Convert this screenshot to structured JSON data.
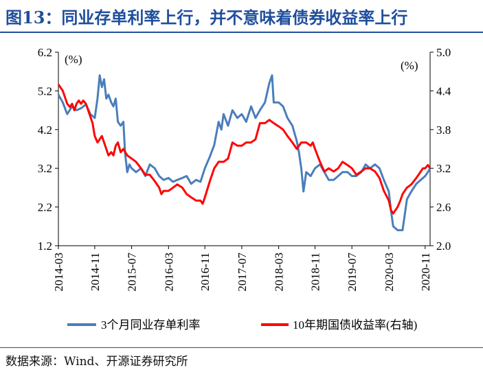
{
  "header": {
    "title": "图13：同业存单利率上行，并不意味着债券收益率上行"
  },
  "footer": {
    "source": "数据来源：Wind、开源证券研究所"
  },
  "chart_data": {
    "type": "line",
    "left_axis": {
      "unit_label": "(%)",
      "ticks": [
        1.2,
        2.2,
        3.2,
        4.2,
        5.2,
        6.2
      ],
      "ylim": [
        1.2,
        6.2
      ]
    },
    "right_axis": {
      "unit_label": "(%)",
      "ticks": [
        2.0,
        2.6,
        3.2,
        3.8,
        4.4,
        5.0
      ],
      "ylim": [
        2.0,
        5.0
      ]
    },
    "x_tick_labels": [
      "2014-03",
      "2014-11",
      "2015-07",
      "2016-03",
      "2016-11",
      "2017-07",
      "2018-03",
      "2018-11",
      "2019-07",
      "2020-03",
      "2020-11"
    ],
    "xlim": [
      2014.17,
      2020.92
    ],
    "x_tick_positions": [
      2014.17,
      2014.83,
      2015.5,
      2016.17,
      2016.83,
      2017.5,
      2018.17,
      2018.83,
      2019.5,
      2020.17,
      2020.83
    ],
    "series": [
      {
        "name": "3个月同业存单利率",
        "axis": "left",
        "color": "#4a7ebb",
        "points": [
          [
            2014.17,
            5.1
          ],
          [
            2014.25,
            4.9
          ],
          [
            2014.33,
            4.6
          ],
          [
            2014.42,
            4.8
          ],
          [
            2014.5,
            4.7
          ],
          [
            2014.58,
            4.75
          ],
          [
            2014.67,
            4.85
          ],
          [
            2014.75,
            4.6
          ],
          [
            2014.83,
            4.5
          ],
          [
            2014.88,
            5.0
          ],
          [
            2014.92,
            5.6
          ],
          [
            2014.96,
            5.3
          ],
          [
            2015.0,
            5.5
          ],
          [
            2015.04,
            5.0
          ],
          [
            2015.08,
            5.1
          ],
          [
            2015.13,
            4.9
          ],
          [
            2015.17,
            4.8
          ],
          [
            2015.21,
            5.0
          ],
          [
            2015.25,
            4.4
          ],
          [
            2015.3,
            4.3
          ],
          [
            2015.35,
            4.4
          ],
          [
            2015.38,
            3.6
          ],
          [
            2015.42,
            3.1
          ],
          [
            2015.46,
            3.3
          ],
          [
            2015.5,
            3.2
          ],
          [
            2015.58,
            3.1
          ],
          [
            2015.67,
            3.2
          ],
          [
            2015.75,
            3.0
          ],
          [
            2015.83,
            3.3
          ],
          [
            2015.92,
            3.2
          ],
          [
            2016.0,
            3.0
          ],
          [
            2016.08,
            2.9
          ],
          [
            2016.17,
            2.95
          ],
          [
            2016.25,
            2.85
          ],
          [
            2016.33,
            2.9
          ],
          [
            2016.42,
            2.95
          ],
          [
            2016.5,
            3.0
          ],
          [
            2016.58,
            2.8
          ],
          [
            2016.67,
            2.9
          ],
          [
            2016.75,
            2.85
          ],
          [
            2016.83,
            3.2
          ],
          [
            2016.92,
            3.5
          ],
          [
            2017.0,
            3.8
          ],
          [
            2017.08,
            4.4
          ],
          [
            2017.13,
            4.2
          ],
          [
            2017.17,
            4.6
          ],
          [
            2017.25,
            4.3
          ],
          [
            2017.33,
            4.7
          ],
          [
            2017.42,
            4.5
          ],
          [
            2017.5,
            4.6
          ],
          [
            2017.58,
            4.4
          ],
          [
            2017.67,
            4.8
          ],
          [
            2017.75,
            4.5
          ],
          [
            2017.83,
            4.7
          ],
          [
            2017.92,
            4.9
          ],
          [
            2018.0,
            5.4
          ],
          [
            2018.05,
            5.6
          ],
          [
            2018.08,
            4.9
          ],
          [
            2018.17,
            4.9
          ],
          [
            2018.25,
            4.8
          ],
          [
            2018.33,
            4.5
          ],
          [
            2018.42,
            4.3
          ],
          [
            2018.5,
            3.9
          ],
          [
            2018.54,
            3.6
          ],
          [
            2018.58,
            3.2
          ],
          [
            2018.62,
            2.6
          ],
          [
            2018.67,
            3.1
          ],
          [
            2018.75,
            3.0
          ],
          [
            2018.83,
            3.2
          ],
          [
            2018.92,
            3.3
          ],
          [
            2019.0,
            3.1
          ],
          [
            2019.08,
            2.9
          ],
          [
            2019.17,
            2.9
          ],
          [
            2019.25,
            3.0
          ],
          [
            2019.33,
            3.1
          ],
          [
            2019.42,
            3.1
          ],
          [
            2019.5,
            3.0
          ],
          [
            2019.58,
            3.0
          ],
          [
            2019.67,
            3.1
          ],
          [
            2019.75,
            3.3
          ],
          [
            2019.83,
            3.2
          ],
          [
            2019.92,
            3.3
          ],
          [
            2020.0,
            3.2
          ],
          [
            2020.08,
            2.9
          ],
          [
            2020.17,
            2.6
          ],
          [
            2020.21,
            2.1
          ],
          [
            2020.25,
            1.7
          ],
          [
            2020.33,
            1.6
          ],
          [
            2020.42,
            1.6
          ],
          [
            2020.5,
            2.4
          ],
          [
            2020.58,
            2.6
          ],
          [
            2020.67,
            2.8
          ],
          [
            2020.75,
            2.9
          ],
          [
            2020.83,
            3.0
          ],
          [
            2020.88,
            3.1
          ],
          [
            2020.92,
            3.2
          ]
        ]
      },
      {
        "name": "10年期国债收益率(右轴)",
        "axis": "right",
        "color": "#ff0000",
        "points": [
          [
            2014.17,
            4.5
          ],
          [
            2014.21,
            4.45
          ],
          [
            2014.25,
            4.4
          ],
          [
            2014.29,
            4.3
          ],
          [
            2014.33,
            4.2
          ],
          [
            2014.38,
            4.15
          ],
          [
            2014.42,
            4.2
          ],
          [
            2014.46,
            4.1
          ],
          [
            2014.5,
            4.2
          ],
          [
            2014.54,
            4.25
          ],
          [
            2014.58,
            4.2
          ],
          [
            2014.62,
            4.25
          ],
          [
            2014.67,
            4.2
          ],
          [
            2014.71,
            4.1
          ],
          [
            2014.75,
            4.0
          ],
          [
            2014.79,
            3.9
          ],
          [
            2014.83,
            3.7
          ],
          [
            2014.88,
            3.6
          ],
          [
            2014.92,
            3.65
          ],
          [
            2014.96,
            3.7
          ],
          [
            2015.0,
            3.6
          ],
          [
            2015.04,
            3.5
          ],
          [
            2015.08,
            3.4
          ],
          [
            2015.13,
            3.45
          ],
          [
            2015.17,
            3.4
          ],
          [
            2015.21,
            3.55
          ],
          [
            2015.25,
            3.6
          ],
          [
            2015.3,
            3.45
          ],
          [
            2015.35,
            3.5
          ],
          [
            2015.42,
            3.4
          ],
          [
            2015.5,
            3.35
          ],
          [
            2015.58,
            3.3
          ],
          [
            2015.67,
            3.2
          ],
          [
            2015.75,
            3.1
          ],
          [
            2015.83,
            3.1
          ],
          [
            2015.92,
            3.0
          ],
          [
            2016.0,
            2.9
          ],
          [
            2016.04,
            2.8
          ],
          [
            2016.08,
            2.85
          ],
          [
            2016.17,
            2.85
          ],
          [
            2016.25,
            2.9
          ],
          [
            2016.33,
            2.95
          ],
          [
            2016.42,
            2.9
          ],
          [
            2016.5,
            2.8
          ],
          [
            2016.58,
            2.75
          ],
          [
            2016.67,
            2.7
          ],
          [
            2016.75,
            2.7
          ],
          [
            2016.79,
            2.65
          ],
          [
            2016.83,
            2.75
          ],
          [
            2016.92,
            3.0
          ],
          [
            2017.0,
            3.2
          ],
          [
            2017.08,
            3.3
          ],
          [
            2017.17,
            3.3
          ],
          [
            2017.25,
            3.35
          ],
          [
            2017.33,
            3.6
          ],
          [
            2017.42,
            3.55
          ],
          [
            2017.5,
            3.55
          ],
          [
            2017.58,
            3.6
          ],
          [
            2017.67,
            3.6
          ],
          [
            2017.75,
            3.65
          ],
          [
            2017.83,
            3.9
          ],
          [
            2017.92,
            3.9
          ],
          [
            2018.0,
            3.95
          ],
          [
            2018.08,
            3.9
          ],
          [
            2018.17,
            3.85
          ],
          [
            2018.25,
            3.8
          ],
          [
            2018.33,
            3.7
          ],
          [
            2018.42,
            3.6
          ],
          [
            2018.5,
            3.5
          ],
          [
            2018.58,
            3.6
          ],
          [
            2018.67,
            3.6
          ],
          [
            2018.75,
            3.55
          ],
          [
            2018.79,
            3.6
          ],
          [
            2018.83,
            3.5
          ],
          [
            2018.92,
            3.3
          ],
          [
            2019.0,
            3.15
          ],
          [
            2019.08,
            3.2
          ],
          [
            2019.17,
            3.15
          ],
          [
            2019.25,
            3.2
          ],
          [
            2019.33,
            3.3
          ],
          [
            2019.42,
            3.25
          ],
          [
            2019.5,
            3.2
          ],
          [
            2019.58,
            3.1
          ],
          [
            2019.67,
            3.15
          ],
          [
            2019.75,
            3.2
          ],
          [
            2019.83,
            3.2
          ],
          [
            2019.92,
            3.15
          ],
          [
            2020.0,
            3.05
          ],
          [
            2020.08,
            2.85
          ],
          [
            2020.17,
            2.7
          ],
          [
            2020.21,
            2.55
          ],
          [
            2020.25,
            2.5
          ],
          [
            2020.29,
            2.55
          ],
          [
            2020.33,
            2.6
          ],
          [
            2020.38,
            2.7
          ],
          [
            2020.42,
            2.8
          ],
          [
            2020.5,
            2.9
          ],
          [
            2020.58,
            2.95
          ],
          [
            2020.67,
            3.05
          ],
          [
            2020.75,
            3.15
          ],
          [
            2020.79,
            3.2
          ],
          [
            2020.83,
            3.2
          ],
          [
            2020.88,
            3.25
          ],
          [
            2020.92,
            3.2
          ]
        ]
      }
    ]
  }
}
